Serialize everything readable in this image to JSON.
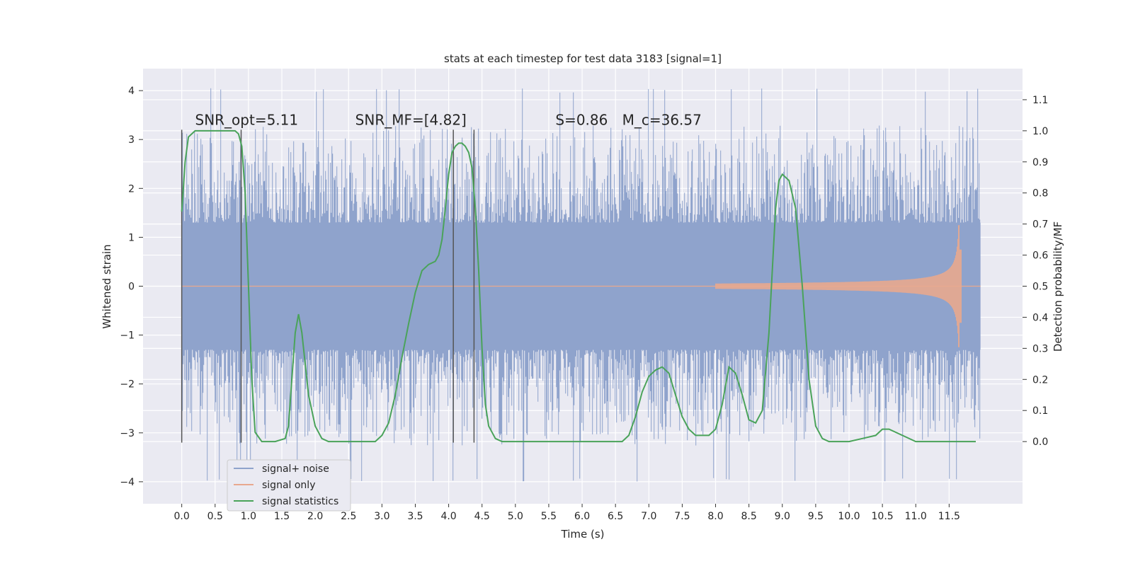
{
  "chart_data": {
    "type": "line",
    "title": "stats at each timestep for test data 3183 [signal=1]",
    "xlabel": "Time (s)",
    "ylabel": "Whitened strain",
    "ylabel_right": "Detection probability/MF",
    "xlim": [
      -0.58,
      12.6
    ],
    "ylim": [
      -4.45,
      4.45
    ],
    "ylim_right": [
      -0.2,
      1.2
    ],
    "x_ticks": [
      "0.0",
      "0.5",
      "1.0",
      "1.5",
      "2.0",
      "2.5",
      "3.0",
      "3.5",
      "4.0",
      "4.5",
      "5.0",
      "5.5",
      "6.0",
      "6.5",
      "7.0",
      "7.5",
      "8.0",
      "8.5",
      "9.0",
      "9.5",
      "10.0",
      "10.5",
      "11.0",
      "11.5"
    ],
    "x_tick_values": [
      0,
      0.5,
      1,
      1.5,
      2,
      2.5,
      3,
      3.5,
      4,
      4.5,
      5,
      5.5,
      6,
      6.5,
      7,
      7.5,
      8,
      8.5,
      9,
      9.5,
      10,
      10.5,
      11,
      11.5
    ],
    "y_ticks_left": [
      "4",
      "3",
      "2",
      "1",
      "0",
      "−1",
      "−2",
      "−3",
      "−4"
    ],
    "y_tick_values_left": [
      4,
      3,
      2,
      1,
      0,
      -1,
      -2,
      -3,
      -4
    ],
    "y_ticks_right": [
      "1.1",
      "1.0",
      "0.9",
      "0.8",
      "0.7",
      "0.6",
      "0.5",
      "0.4",
      "0.3",
      "0.2",
      "0.1",
      "0.0"
    ],
    "y_tick_values_right": [
      1.1,
      1.0,
      0.9,
      0.8,
      0.7,
      0.6,
      0.5,
      0.4,
      0.3,
      0.2,
      0.1,
      0.0
    ],
    "grid": true,
    "legend_position": "lower-left",
    "annotations": [
      {
        "id": "snr-opt",
        "text": "SNR_opt=5.11",
        "x": 0.2,
        "y": 3.3
      },
      {
        "id": "snr-mf",
        "text": "SNR_MF=[4.82]",
        "x": 2.6,
        "y": 3.3
      },
      {
        "id": "s-value",
        "text": "S=0.86",
        "x": 5.6,
        "y": 3.3
      },
      {
        "id": "mc-value",
        "text": "M_c=36.57",
        "x": 6.6,
        "y": 3.3
      }
    ],
    "vertical_markers": [
      0.0,
      0.89,
      4.07,
      4.38
    ],
    "marker_y_range": [
      -3.2,
      3.2
    ],
    "series": [
      {
        "name": "signal+ noise",
        "color": "#8fa3cc",
        "x_range": [
          0.0,
          11.97
        ],
        "band_inner": 1.3,
        "band_outer": 2.0,
        "spike_max": 4.05,
        "spike_min": -4.0
      },
      {
        "name": "signal only",
        "color": "#e8a88e",
        "chirp_start": 8.0,
        "chirp_peak_time": 11.66,
        "chirp_peak_amplitude": 1.25
      },
      {
        "name": "signal statistics",
        "color": "#4aa35a",
        "axis": "right",
        "x": [
          0.0,
          0.05,
          0.1,
          0.15,
          0.2,
          0.3,
          0.5,
          0.7,
          0.8,
          0.85,
          0.9,
          0.95,
          1.0,
          1.05,
          1.1,
          1.2,
          1.4,
          1.55,
          1.6,
          1.65,
          1.7,
          1.75,
          1.8,
          1.9,
          2.0,
          2.1,
          2.2,
          2.5,
          2.9,
          3.0,
          3.1,
          3.2,
          3.3,
          3.4,
          3.5,
          3.6,
          3.7,
          3.8,
          3.85,
          3.9,
          3.95,
          4.0,
          4.05,
          4.1,
          4.15,
          4.2,
          4.25,
          4.3,
          4.35,
          4.4,
          4.45,
          4.5,
          4.55,
          4.6,
          4.7,
          4.8,
          5.0,
          5.5,
          6.0,
          6.5,
          6.6,
          6.7,
          6.8,
          6.9,
          7.0,
          7.1,
          7.2,
          7.3,
          7.4,
          7.5,
          7.6,
          7.7,
          7.8,
          7.9,
          8.0,
          8.1,
          8.2,
          8.3,
          8.4,
          8.5,
          8.6,
          8.7,
          8.8,
          8.9,
          8.95,
          9.0,
          9.1,
          9.2,
          9.3,
          9.4,
          9.5,
          9.6,
          9.7,
          10.0,
          10.2,
          10.4,
          10.5,
          10.6,
          10.8,
          11.0,
          11.5,
          11.9
        ],
        "values": [
          0.74,
          0.9,
          0.98,
          0.99,
          1.0,
          1.0,
          1.0,
          1.0,
          1.0,
          0.99,
          0.95,
          0.8,
          0.5,
          0.2,
          0.03,
          0.0,
          0.0,
          0.01,
          0.05,
          0.2,
          0.35,
          0.41,
          0.35,
          0.15,
          0.05,
          0.01,
          0.0,
          0.0,
          0.0,
          0.02,
          0.06,
          0.15,
          0.27,
          0.38,
          0.48,
          0.55,
          0.57,
          0.58,
          0.6,
          0.65,
          0.75,
          0.86,
          0.93,
          0.95,
          0.96,
          0.96,
          0.95,
          0.93,
          0.88,
          0.75,
          0.55,
          0.3,
          0.12,
          0.05,
          0.01,
          0.0,
          0.0,
          0.0,
          0.0,
          0.0,
          0.0,
          0.02,
          0.08,
          0.16,
          0.21,
          0.23,
          0.24,
          0.22,
          0.15,
          0.08,
          0.04,
          0.02,
          0.02,
          0.02,
          0.04,
          0.12,
          0.24,
          0.22,
          0.15,
          0.07,
          0.06,
          0.1,
          0.35,
          0.75,
          0.84,
          0.86,
          0.84,
          0.75,
          0.5,
          0.2,
          0.05,
          0.01,
          0.0,
          0.0,
          0.01,
          0.02,
          0.04,
          0.04,
          0.02,
          0.0,
          0.0,
          0.0
        ]
      }
    ]
  }
}
